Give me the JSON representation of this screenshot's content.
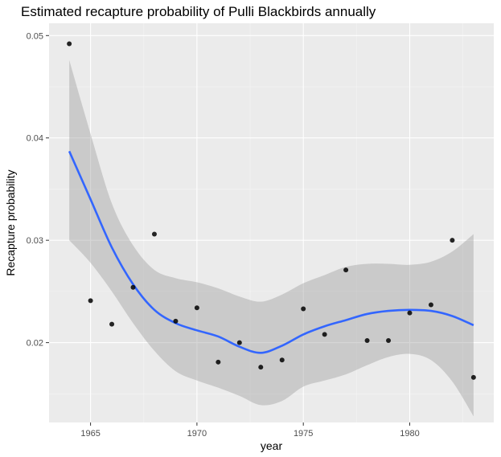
{
  "chart_data": {
    "type": "scatter",
    "title": "Estimated recapture probability of Pulli Blackbirds annually",
    "xlabel": "year",
    "ylabel": "Recapture probability",
    "xlim": [
      1963.05,
      1983.95
    ],
    "ylim": [
      0.0122,
      0.0512
    ],
    "x_ticks": [
      1965,
      1970,
      1975,
      1980
    ],
    "x_tick_labels": [
      "1965",
      "1970",
      "1975",
      "1980"
    ],
    "y_ticks": [
      0.02,
      0.03,
      0.04,
      0.05
    ],
    "y_tick_labels": [
      "0.02",
      "0.03",
      "0.04",
      "0.05"
    ],
    "grid": true,
    "points": [
      {
        "x": 1964,
        "y": 0.0492
      },
      {
        "x": 1965,
        "y": 0.0241
      },
      {
        "x": 1966,
        "y": 0.0218
      },
      {
        "x": 1967,
        "y": 0.0254
      },
      {
        "x": 1968,
        "y": 0.0306
      },
      {
        "x": 1969,
        "y": 0.0221
      },
      {
        "x": 1970,
        "y": 0.0234
      },
      {
        "x": 1971,
        "y": 0.0181
      },
      {
        "x": 1972,
        "y": 0.02
      },
      {
        "x": 1973,
        "y": 0.0176
      },
      {
        "x": 1974,
        "y": 0.0183
      },
      {
        "x": 1975,
        "y": 0.0233
      },
      {
        "x": 1976,
        "y": 0.0208
      },
      {
        "x": 1977,
        "y": 0.0271
      },
      {
        "x": 1978,
        "y": 0.0202
      },
      {
        "x": 1979,
        "y": 0.0202
      },
      {
        "x": 1980,
        "y": 0.0229
      },
      {
        "x": 1981,
        "y": 0.0237
      },
      {
        "x": 1982,
        "y": 0.03
      },
      {
        "x": 1983,
        "y": 0.0166
      }
    ],
    "smooth": {
      "x": [
        1964,
        1965,
        1966,
        1967,
        1968,
        1969,
        1970,
        1971,
        1972,
        1973,
        1974,
        1975,
        1976,
        1977,
        1978,
        1979,
        1980,
        1981,
        1982,
        1983
      ],
      "y": [
        0.0387,
        0.034,
        0.0293,
        0.0257,
        0.0232,
        0.0219,
        0.0212,
        0.0206,
        0.0196,
        0.019,
        0.0197,
        0.0208,
        0.0216,
        0.0222,
        0.0228,
        0.0231,
        0.0232,
        0.0231,
        0.0226,
        0.0217
      ],
      "lower": [
        0.03,
        0.0278,
        0.025,
        0.0219,
        0.0192,
        0.0172,
        0.0163,
        0.0156,
        0.0148,
        0.0139,
        0.0143,
        0.0157,
        0.0163,
        0.0169,
        0.0178,
        0.0186,
        0.0189,
        0.0183,
        0.0162,
        0.0128
      ],
      "upper": [
        0.0476,
        0.0404,
        0.0336,
        0.0295,
        0.0271,
        0.0263,
        0.0259,
        0.0253,
        0.0245,
        0.024,
        0.0247,
        0.0258,
        0.0266,
        0.0274,
        0.0277,
        0.0277,
        0.0276,
        0.0279,
        0.0289,
        0.0306
      ]
    },
    "colors": {
      "panel": "#ebebeb",
      "grid_major": "#ffffff",
      "grid_minor": "#f5f5f5",
      "point": "#000000",
      "line": "#3366ff",
      "ribbon": "#999999",
      "tick": "#333333"
    }
  }
}
